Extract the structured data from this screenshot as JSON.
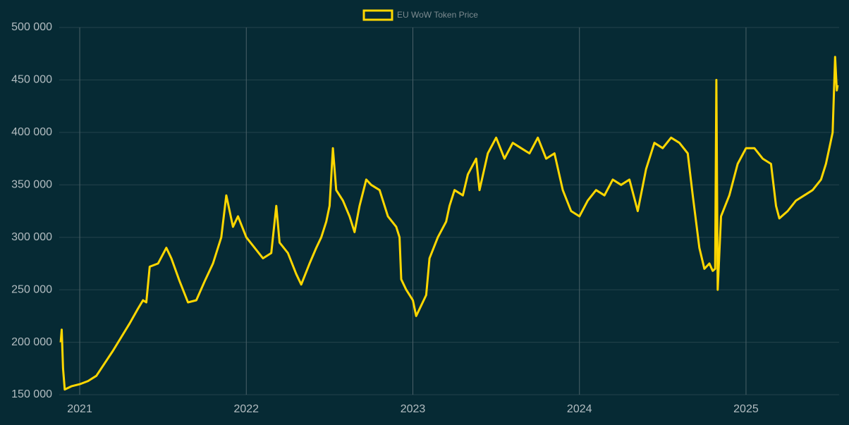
{
  "chart_data": {
    "type": "line",
    "x": [
      2020.886,
      2020.892,
      2020.9,
      2020.91,
      2020.95,
      2021.0,
      2021.05,
      2021.1,
      2021.15,
      2021.2,
      2021.25,
      2021.3,
      2021.35,
      2021.38,
      2021.4,
      2021.42,
      2021.47,
      2021.52,
      2021.55,
      2021.6,
      2021.65,
      2021.7,
      2021.75,
      2021.8,
      2021.85,
      2021.88,
      2021.92,
      2021.95,
      2022.0,
      2022.05,
      2022.1,
      2022.15,
      2022.18,
      2022.2,
      2022.25,
      2022.3,
      2022.33,
      2022.38,
      2022.42,
      2022.45,
      2022.48,
      2022.5,
      2022.52,
      2022.54,
      2022.58,
      2022.62,
      2022.65,
      2022.68,
      2022.72,
      2022.75,
      2022.8,
      2022.85,
      2022.9,
      2022.92,
      2022.93,
      2022.96,
      2023.0,
      2023.02,
      2023.05,
      2023.08,
      2023.1,
      2023.15,
      2023.2,
      2023.22,
      2023.25,
      2023.3,
      2023.33,
      2023.38,
      2023.4,
      2023.45,
      2023.5,
      2023.55,
      2023.6,
      2023.65,
      2023.7,
      2023.75,
      2023.8,
      2023.85,
      2023.9,
      2023.95,
      2024.0,
      2024.05,
      2024.1,
      2024.15,
      2024.2,
      2024.25,
      2024.3,
      2024.35,
      2024.4,
      2024.45,
      2024.5,
      2024.55,
      2024.6,
      2024.65,
      2024.68,
      2024.72,
      2024.75,
      2024.78,
      2024.8,
      2024.815,
      2024.822,
      2024.83,
      2024.85,
      2024.9,
      2024.95,
      2025.0,
      2025.05,
      2025.1,
      2025.15,
      2025.18,
      2025.2,
      2025.25,
      2025.3,
      2025.35,
      2025.4,
      2025.45,
      2025.48,
      2025.5,
      2025.52,
      2025.535,
      2025.545,
      2025.55
    ],
    "series": [
      {
        "name": "EU WoW Token Price",
        "color": "#ffd700",
        "values": [
          200000,
          212000,
          175000,
          155000,
          158000,
          160000,
          163000,
          168000,
          180000,
          192000,
          205000,
          218000,
          232000,
          240000,
          238000,
          272000,
          275000,
          290000,
          280000,
          258000,
          238000,
          240000,
          258000,
          275000,
          300000,
          340000,
          310000,
          320000,
          300000,
          290000,
          280000,
          285000,
          330000,
          295000,
          285000,
          265000,
          255000,
          275000,
          290000,
          300000,
          315000,
          330000,
          385000,
          345000,
          335000,
          320000,
          305000,
          330000,
          355000,
          350000,
          345000,
          320000,
          310000,
          300000,
          260000,
          250000,
          240000,
          225000,
          235000,
          245000,
          280000,
          300000,
          315000,
          330000,
          345000,
          340000,
          360000,
          375000,
          345000,
          380000,
          395000,
          375000,
          390000,
          385000,
          380000,
          395000,
          375000,
          380000,
          345000,
          325000,
          320000,
          335000,
          345000,
          340000,
          355000,
          350000,
          355000,
          325000,
          365000,
          390000,
          385000,
          395000,
          390000,
          380000,
          340000,
          290000,
          270000,
          275000,
          268000,
          270000,
          450000,
          250000,
          320000,
          340000,
          370000,
          385000,
          385000,
          375000,
          370000,
          330000,
          318000,
          325000,
          335000,
          340000,
          345000,
          355000,
          370000,
          385000,
          400000,
          472000,
          440000,
          445000
        ]
      }
    ],
    "xlim": [
      2020.877,
      2025.559
    ],
    "xticks": [
      2021,
      2022,
      2023,
      2024,
      2025
    ],
    "ylim": [
      150000,
      500000
    ],
    "yticks": [
      {
        "value": 150000,
        "label": "150 000"
      },
      {
        "value": 200000,
        "label": "200 000"
      },
      {
        "value": 250000,
        "label": "250 000"
      },
      {
        "value": 300000,
        "label": "300 000"
      },
      {
        "value": 350000,
        "label": "350 000"
      },
      {
        "value": 400000,
        "label": "400 000"
      },
      {
        "value": 450000,
        "label": "450 000"
      },
      {
        "value": 500000,
        "label": "500 000"
      }
    ],
    "grid": true
  }
}
